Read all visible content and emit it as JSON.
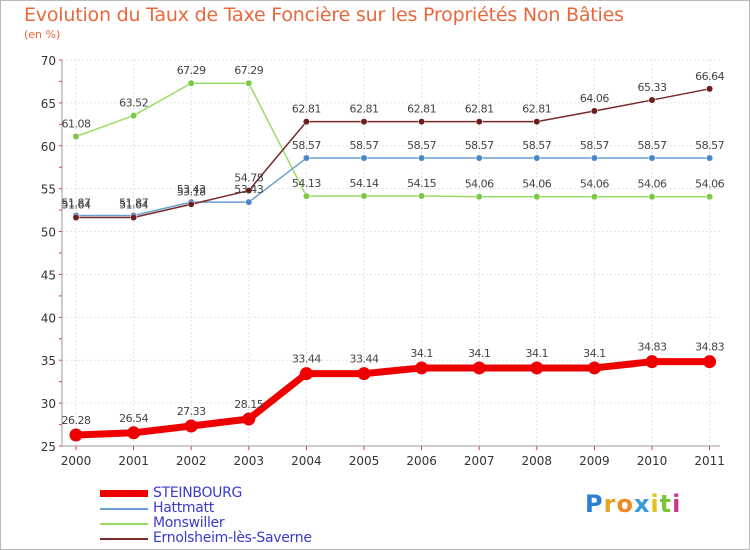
{
  "header": {
    "title": "Evolution du Taux de Taxe Foncière sur les Propriétés Non Bâties",
    "unit": "(en %)"
  },
  "logo": {
    "letters": [
      "P",
      "r",
      "o",
      "x",
      "i",
      "t",
      "i"
    ],
    "colors": [
      "#2a7fd4",
      "#e5a52a",
      "#f08a24",
      "#3a9ad9",
      "#e0c220",
      "#7cc43a",
      "#c83a8a"
    ]
  },
  "chart_data": {
    "type": "line",
    "title": "Evolution du Taux de Taxe Foncière sur les Propriétés Non Bâties",
    "ylabel": "(en %)",
    "xlabel": "",
    "ylim": [
      25,
      70
    ],
    "yticks": [
      25,
      30,
      35,
      40,
      45,
      50,
      55,
      60,
      65,
      70
    ],
    "grid": true,
    "legend_position": "bottom-left",
    "categories": [
      "2000",
      "2001",
      "2002",
      "2003",
      "2004",
      "2005",
      "2006",
      "2007",
      "2008",
      "2009",
      "2010",
      "2011"
    ],
    "series": [
      {
        "name": "STEINBOURG",
        "color": "#ee0000",
        "values": [
          26.28,
          26.54,
          27.33,
          28.15,
          33.44,
          33.44,
          34.1,
          34.1,
          34.1,
          34.1,
          34.83,
          34.83
        ],
        "labels": [
          "26.28",
          "26.54",
          "27.33",
          "28.15",
          "33.44",
          "33.44",
          "34.1",
          "34.1",
          "34.1",
          "34.1",
          "34.83",
          "34.83"
        ]
      },
      {
        "name": "Hattmatt",
        "color": "#6a9fd4",
        "marker": "#4a86c8",
        "values": [
          51.87,
          51.87,
          53.43,
          53.43,
          58.57,
          58.57,
          58.57,
          58.57,
          58.57,
          58.57,
          58.57,
          58.57
        ],
        "labels": [
          "51.87",
          "51.87",
          "53.43",
          "53.43",
          "58.57",
          "58.57",
          "58.57",
          "58.57",
          "58.57",
          "58.57",
          "58.57",
          "58.57"
        ]
      },
      {
        "name": "Monswiller",
        "color": "#99dd66",
        "marker": "#7cc843",
        "values": [
          61.08,
          63.52,
          67.29,
          67.29,
          54.13,
          54.14,
          54.15,
          54.06,
          54.06,
          54.06,
          54.06,
          54.06
        ],
        "labels": [
          "61.08",
          "63.52",
          "67.29",
          "67.29",
          "54.13",
          "54.14",
          "54.15",
          "54.06",
          "54.06",
          "54.06",
          "54.06",
          "54.06"
        ]
      },
      {
        "name": "Ernolsheim-lès-Saverne",
        "color": "#7a2a2a",
        "marker": "#6b1e1e",
        "values": [
          51.64,
          51.64,
          53.18,
          54.78,
          62.81,
          62.81,
          62.81,
          62.81,
          62.81,
          64.06,
          65.33,
          66.64
        ],
        "labels": [
          "51.64",
          "51.64",
          "53.18",
          "54.78",
          "62.81",
          "62.81",
          "62.81",
          "62.81",
          "62.81",
          "64.06",
          "65.33",
          "66.64"
        ]
      }
    ]
  }
}
